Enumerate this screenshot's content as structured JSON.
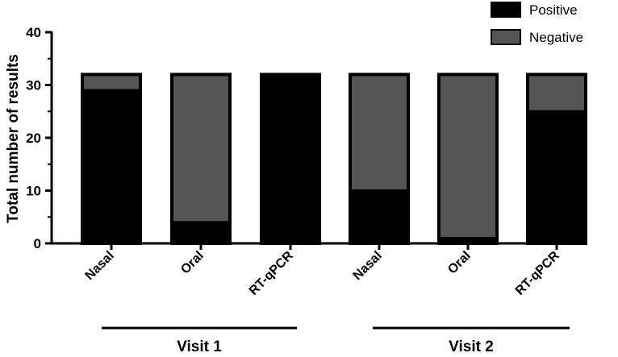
{
  "chart_data": {
    "type": "bar",
    "stacked": true,
    "categories": [
      "Nasal",
      "Oral",
      "RT-qPCR",
      "Nasal",
      "Oral",
      "RT-qPCR"
    ],
    "groups": [
      {
        "label": "Visit 1",
        "categories": [
          0,
          1,
          2
        ]
      },
      {
        "label": "Visit 2",
        "categories": [
          3,
          4,
          5
        ]
      }
    ],
    "series": [
      {
        "name": "Positive",
        "color": "#000000",
        "values": [
          29,
          4,
          32,
          10,
          1,
          25
        ]
      },
      {
        "name": "Negative",
        "color": "#555555",
        "values": [
          3,
          28,
          0,
          22,
          31,
          7
        ]
      }
    ],
    "xlabel": "",
    "ylabel": "Total number of results",
    "ylim": [
      0,
      40
    ],
    "yticks": [
      0,
      10,
      20,
      30,
      40
    ],
    "grid": false,
    "legend_position": "top-right"
  }
}
